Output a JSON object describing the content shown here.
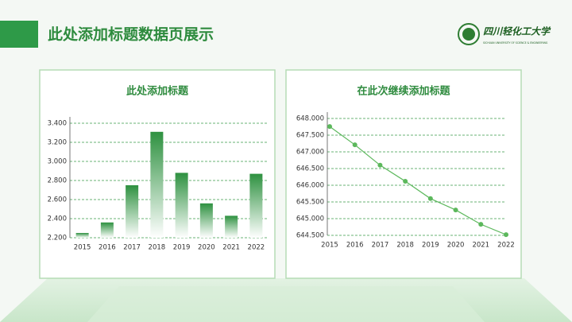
{
  "header": {
    "title": "此处添加标题数据页展示",
    "logo": "四川轻化工大学",
    "logo_subtitle": "SICHUAN UNIVERSITY OF SCIENCE & ENGINEERING"
  },
  "chart_data": [
    {
      "type": "bar",
      "title": "此处添加标题",
      "color": "#3a9a4a",
      "categories": [
        "2015",
        "2016",
        "2017",
        "2018",
        "2019",
        "2020",
        "2021",
        "2022"
      ],
      "values": [
        2.25,
        2.36,
        2.75,
        3.31,
        2.88,
        2.56,
        2.43,
        2.87
      ],
      "ylim": [
        2.2,
        3.4
      ],
      "yticks": [
        {
          "value": 2.2,
          "label": "2.200"
        },
        {
          "value": 2.4,
          "label": "2.400"
        },
        {
          "value": 2.6,
          "label": "2.600"
        },
        {
          "value": 2.8,
          "label": "2.800"
        },
        {
          "value": 3.0,
          "label": "3.000"
        },
        {
          "value": 3.2,
          "label": "3.200"
        },
        {
          "value": 3.4,
          "label": "3.400"
        }
      ],
      "grid": true
    },
    {
      "type": "line",
      "title": "在此次继续添加标题",
      "color": "#5cb85c",
      "categories": [
        "2015",
        "2016",
        "2017",
        "2018",
        "2019",
        "2020",
        "2021",
        "2022"
      ],
      "values": [
        647.76,
        647.21,
        646.6,
        646.12,
        645.6,
        645.26,
        644.83,
        644.52
      ],
      "ylim": [
        644.5,
        648.0
      ],
      "yticks": [
        {
          "value": 644.5,
          "label": "644.500"
        },
        {
          "value": 645.0,
          "label": "645.000"
        },
        {
          "value": 645.5,
          "label": "645.500"
        },
        {
          "value": 646.0,
          "label": "646.000"
        },
        {
          "value": 646.5,
          "label": "646.500"
        },
        {
          "value": 647.0,
          "label": "647.000"
        },
        {
          "value": 647.5,
          "label": "647.500"
        },
        {
          "value": 648.0,
          "label": "648.000"
        }
      ],
      "grid": true
    }
  ]
}
